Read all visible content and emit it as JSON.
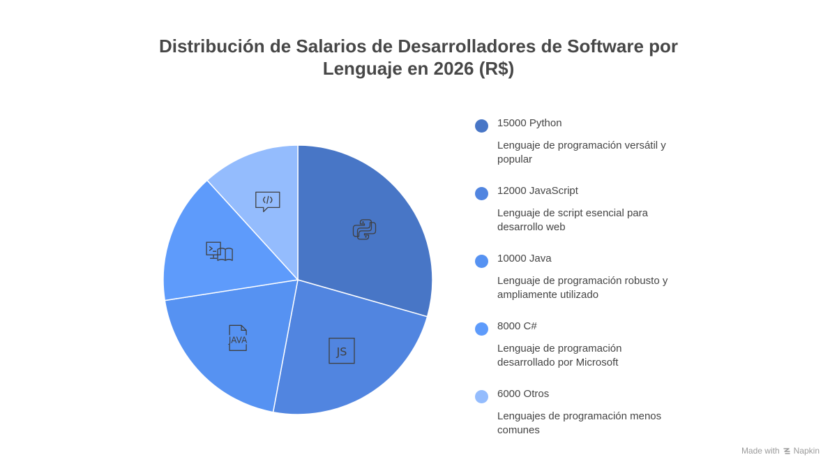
{
  "chart_data": {
    "type": "pie",
    "title_lines": [
      "Distribución de Salarios de Desarrolladores de Software por",
      "Lenguaje en 2026 (R$)"
    ],
    "slices": [
      {
        "label": "Python",
        "value": 15000,
        "display": "15000 Python",
        "description": "Lenguaje de programación versátil y popular",
        "color": "#4876c6",
        "icon": "python-icon"
      },
      {
        "label": "JavaScript",
        "value": 12000,
        "display": "12000 JavaScript",
        "description": "Lenguaje de script esencial para desarrollo web",
        "color": "#5185e0",
        "icon": "js-icon"
      },
      {
        "label": "Java",
        "value": 10000,
        "display": "10000 Java",
        "description": "Lenguaje de programación robusto y ampliamente utilizado",
        "color": "#5692f2",
        "icon": "java-icon"
      },
      {
        "label": "C#",
        "value": 8000,
        "display": "8000 C#",
        "description": "Lenguaje de programación desarrollado por Microsoft",
        "color": "#5e9bfb",
        "icon": "terminal-book-icon"
      },
      {
        "label": "Otros",
        "value": 6000,
        "display": "6000 Otros",
        "description": "Lenguajes de programación menos comunes",
        "color": "#94bcfd",
        "icon": "code-chat-icon"
      }
    ]
  },
  "footer": {
    "made_with": "Made with",
    "brand": "Napkin"
  }
}
